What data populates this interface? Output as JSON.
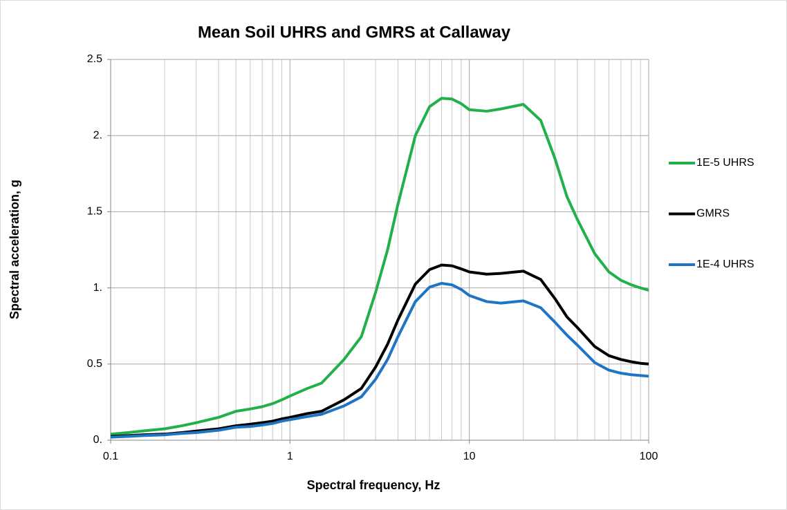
{
  "chart_data": {
    "type": "line",
    "title": "Mean Soil UHRS and GMRS at Callaway",
    "x_label": "Spectral frequency, Hz",
    "y_label": "Spectral acceleration, g",
    "x_log": true,
    "grid": true,
    "legend": "right",
    "xlim": [
      0.1,
      100
    ],
    "xticks": [
      0.1,
      1,
      10,
      100
    ],
    "ylim": [
      0,
      2.5
    ],
    "yticks": [
      {
        "value": 0,
        "label": "0."
      },
      0.5,
      {
        "value": 1,
        "label": "1."
      },
      1.5,
      {
        "value": 2,
        "label": "2."
      },
      2.5
    ],
    "x": [
      0.1,
      0.125,
      0.15,
      0.2,
      0.25,
      0.3,
      0.4,
      0.5,
      0.6,
      0.7,
      0.8,
      0.9,
      1,
      1.25,
      1.5,
      2,
      2.5,
      3,
      3.5,
      4,
      5,
      6,
      7,
      8,
      9,
      10,
      12.5,
      15,
      20,
      25,
      30,
      35,
      40,
      50,
      60,
      70,
      80,
      90,
      100
    ],
    "series": [
      {
        "name": "1E-5 UHRS",
        "color": "#22b04b",
        "values": [
          0.04,
          0.05,
          0.06,
          0.075,
          0.095,
          0.115,
          0.15,
          0.19,
          0.205,
          0.22,
          0.24,
          0.265,
          0.29,
          0.34,
          0.375,
          0.53,
          0.68,
          0.97,
          1.25,
          1.55,
          2.0,
          2.19,
          2.245,
          2.24,
          2.21,
          2.17,
          2.16,
          2.175,
          2.205,
          2.1,
          1.85,
          1.6,
          1.45,
          1.225,
          1.105,
          1.05,
          1.02,
          1.0,
          0.985
        ]
      },
      {
        "name": "GMRS",
        "color": "#000000",
        "values": [
          0.025,
          0.03,
          0.035,
          0.04,
          0.05,
          0.06,
          0.075,
          0.095,
          0.105,
          0.115,
          0.125,
          0.14,
          0.15,
          0.175,
          0.19,
          0.265,
          0.34,
          0.48,
          0.63,
          0.79,
          1.025,
          1.12,
          1.15,
          1.145,
          1.125,
          1.105,
          1.09,
          1.095,
          1.11,
          1.055,
          0.93,
          0.81,
          0.74,
          0.615,
          0.555,
          0.53,
          0.515,
          0.505,
          0.5
        ]
      },
      {
        "name": "1E-4 UHRS",
        "color": "#1f74c4",
        "values": [
          0.02,
          0.025,
          0.03,
          0.035,
          0.045,
          0.05,
          0.065,
          0.085,
          0.09,
          0.1,
          0.11,
          0.125,
          0.135,
          0.155,
          0.17,
          0.225,
          0.285,
          0.4,
          0.53,
          0.68,
          0.91,
          1.005,
          1.03,
          1.02,
          0.99,
          0.95,
          0.91,
          0.9,
          0.915,
          0.87,
          0.775,
          0.69,
          0.625,
          0.51,
          0.46,
          0.44,
          0.43,
          0.425,
          0.42
        ]
      }
    ]
  }
}
